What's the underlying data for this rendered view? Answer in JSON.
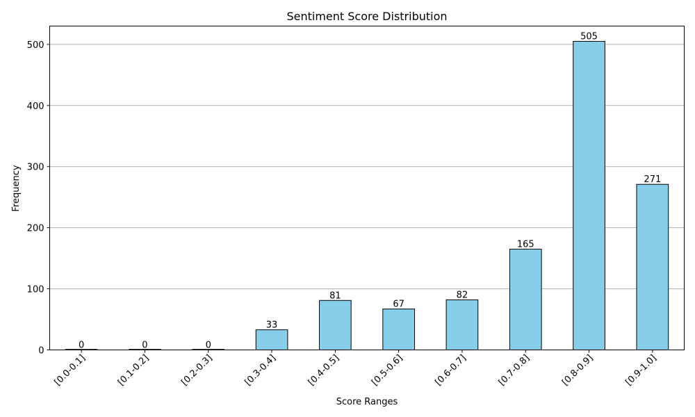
{
  "chart_data": {
    "type": "bar",
    "title": "Sentiment Score Distribution",
    "xlabel": "Score Ranges",
    "ylabel": "Frequency",
    "categories": [
      "[0.0-0.1]",
      "[0.1-0.2]",
      "[0.2-0.3]",
      "[0.3-0.4]",
      "[0.4-0.5]",
      "[0.5-0.6]",
      "[0.6-0.7]",
      "[0.7-0.8]",
      "[0.8-0.9]",
      "[0.9-1.0]"
    ],
    "values": [
      0,
      0,
      0,
      33,
      81,
      67,
      82,
      165,
      505,
      271
    ],
    "ylim": [
      0,
      530
    ],
    "yticks": [
      0,
      100,
      200,
      300,
      400,
      500
    ],
    "grid": "horizontal",
    "bar_color": "#87ceeb",
    "bar_edge_color": "#000000",
    "grid_color": "#b0b0b0"
  }
}
